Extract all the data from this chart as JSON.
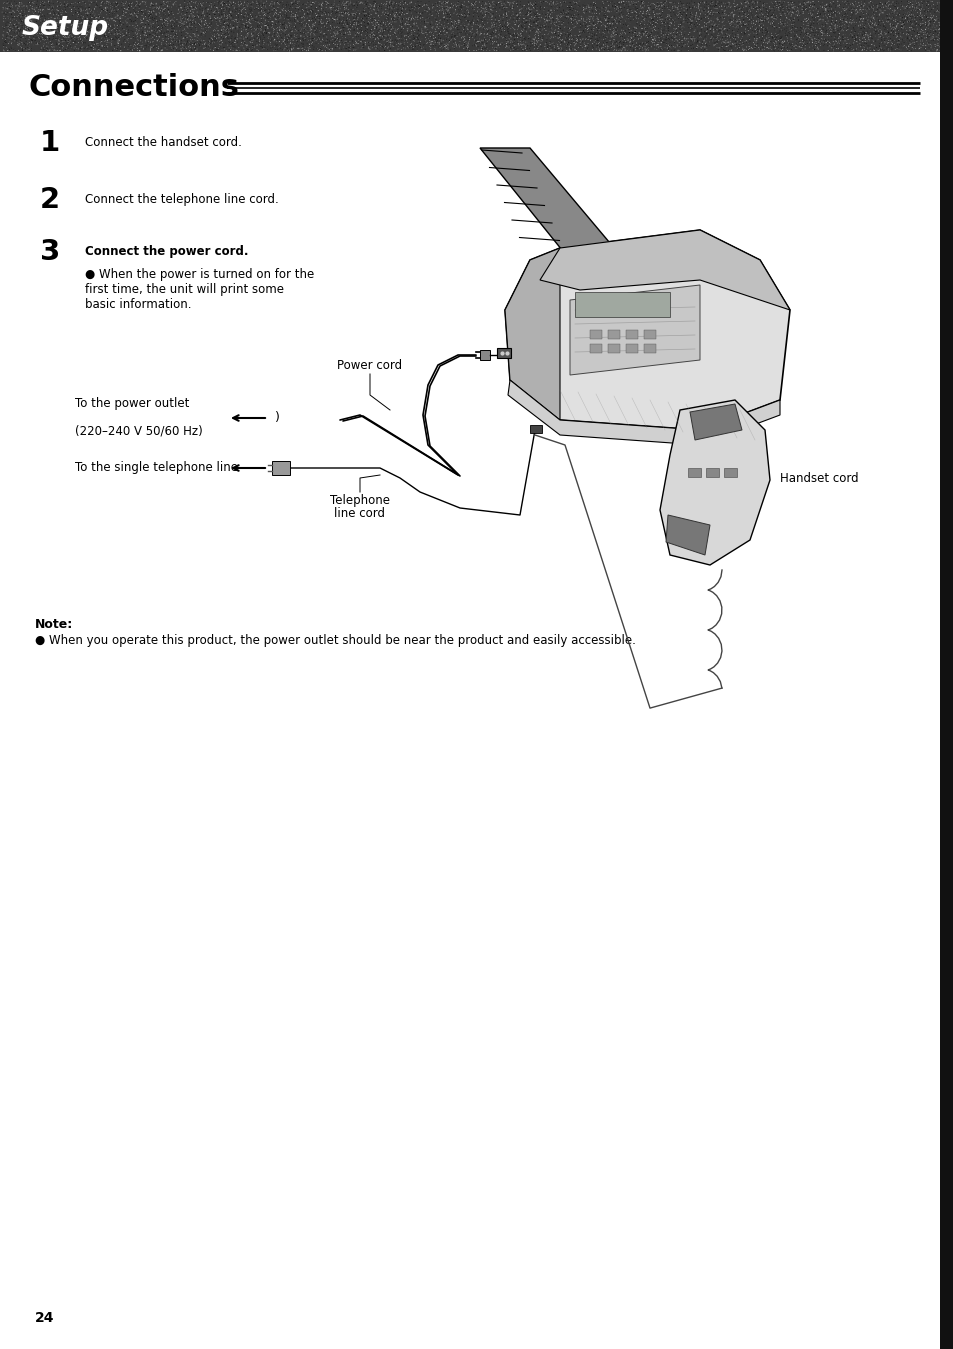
{
  "page_bg": "#ffffff",
  "header_text": "Setup",
  "section_title": "Connections",
  "step1_num": "1",
  "step1_text": "Connect the handset cord.",
  "step2_num": "2",
  "step2_text": "Connect the telephone line cord.",
  "step3_num": "3",
  "step3_text": "Connect the power cord.",
  "step3_bullet": "When the power is turned on for the\nfirst time, the unit will print some\nbasic information.",
  "label_power_cord": "Power cord",
  "label_power_outlet_1": "To the power outlet",
  "label_power_outlet_2": "(220–240 V 50/60 Hz)",
  "label_telephone_line": "To the single telephone line",
  "label_handset_cord": "Handset cord",
  "label_tel_cord_1": "Telephone",
  "label_tel_cord_2": "line cord",
  "note_title": "Note:",
  "note_text": "● When you operate this product, the power outlet should be near the product and easily accessible.",
  "page_number": "24",
  "body_fs": 8.5,
  "step_num_fs": 21,
  "title_fs": 22
}
